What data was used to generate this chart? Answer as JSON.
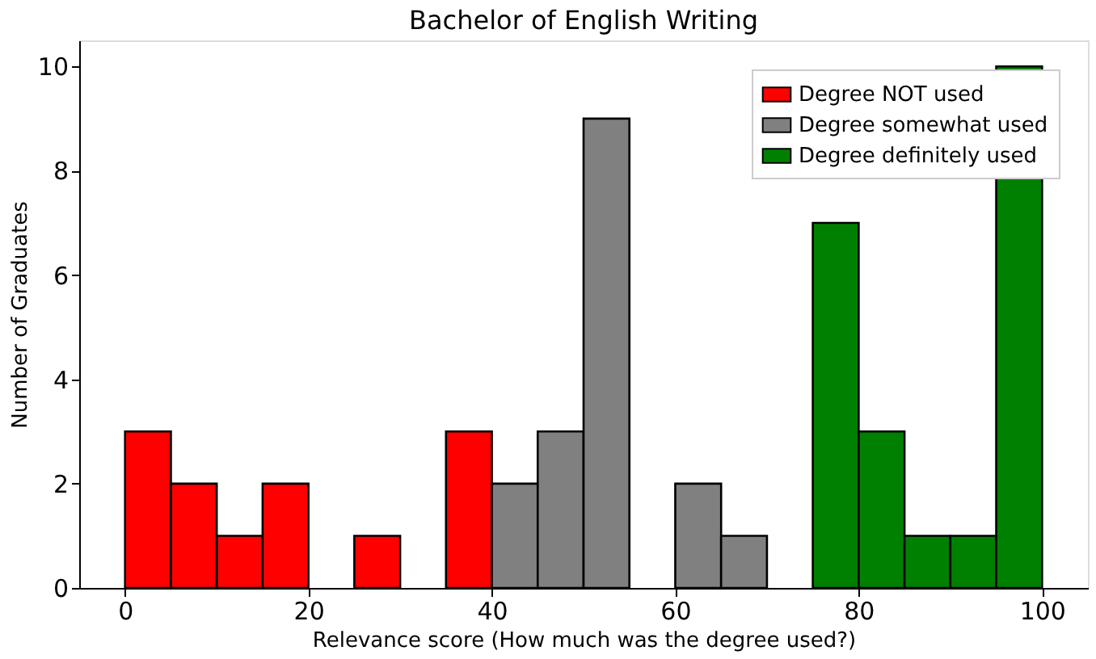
{
  "chart_data": {
    "type": "histogram",
    "title": "Bachelor of English Writing",
    "xlabel": "Relevance score (How much was the degree used?)",
    "ylabel": "Number of Graduates",
    "bins": [
      0,
      5,
      10,
      15,
      20,
      25,
      30,
      35,
      40,
      45,
      50,
      55,
      60,
      65,
      70,
      75,
      80,
      85,
      90,
      95,
      100
    ],
    "series": [
      {
        "name": "Degree NOT used",
        "color": "#ff0000",
        "values": [
          3,
          2,
          1,
          2,
          0,
          1,
          0,
          3,
          null,
          null,
          null,
          null,
          null,
          null,
          null,
          null,
          null,
          null,
          null,
          null
        ]
      },
      {
        "name": "Degree somewhat used",
        "color": "#808080",
        "values": [
          null,
          null,
          null,
          null,
          null,
          null,
          null,
          null,
          2,
          3,
          9,
          0,
          2,
          1,
          null,
          null,
          null,
          null,
          null,
          null
        ]
      },
      {
        "name": "Degree definitely used",
        "color": "#008000",
        "values": [
          null,
          null,
          null,
          null,
          null,
          null,
          null,
          null,
          null,
          null,
          null,
          null,
          null,
          null,
          0,
          7,
          3,
          1,
          1,
          10
        ]
      }
    ],
    "xlim": [
      -5,
      105
    ],
    "xticks": [
      0,
      20,
      40,
      60,
      80,
      100
    ],
    "ylim": [
      0,
      10.5
    ],
    "yticks": [
      0,
      2,
      4,
      6,
      8,
      10
    ],
    "grid": false,
    "legend": "top right"
  }
}
